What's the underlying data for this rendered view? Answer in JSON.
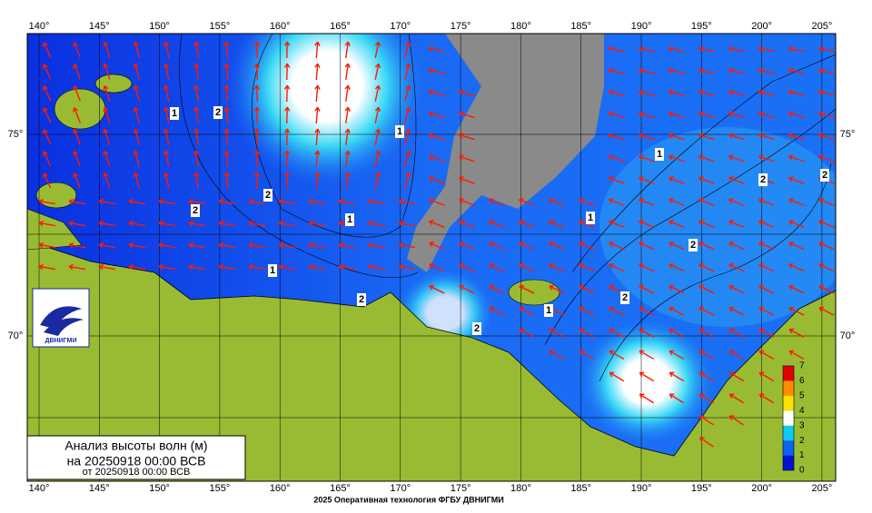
{
  "map": {
    "lon_labels": [
      "140°",
      "145°",
      "150°",
      "155°",
      "160°",
      "165°",
      "170°",
      "175°",
      "180°",
      "185°",
      "190°",
      "195°",
      "200°",
      "205°"
    ],
    "lat_labels": [
      "75°",
      "70°"
    ],
    "title": {
      "line1": "Анализ высоты волн (м)",
      "line2": "на 20250918 00:00 ВСВ",
      "line3": "от 20250918 00:00 ВСВ"
    },
    "logo": "ДВНИГМИ",
    "colorbar": {
      "ticks": [
        0,
        1,
        2,
        3,
        4,
        5,
        6,
        7
      ],
      "colors": [
        "#0014d0",
        "#0a64f0",
        "#11c8f0",
        "#ffffff",
        "#ffe000",
        "#ff8c00",
        "#e00000"
      ]
    },
    "contour_labels": [
      "1",
      "2",
      "1",
      "2",
      "2",
      "1",
      "1",
      "2",
      "2",
      "1",
      "1",
      "2",
      "2",
      "2",
      "2",
      "1"
    ],
    "footer": "2025 Оперативная технология ФГБУ ДВНИГМИ"
  }
}
